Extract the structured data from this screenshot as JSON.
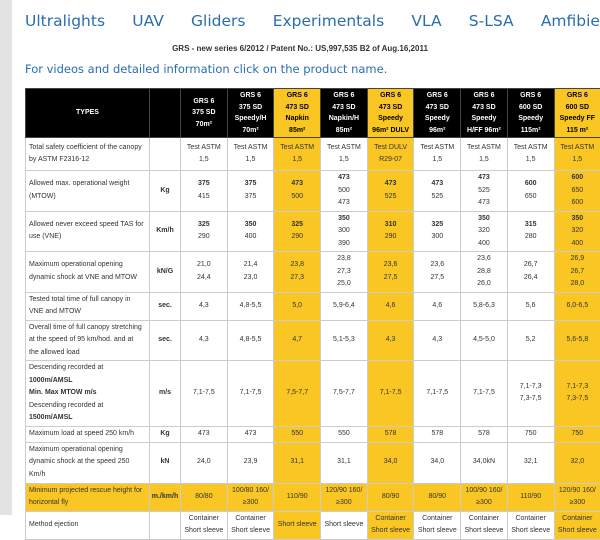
{
  "nav": [
    "Ultralights",
    "UAV",
    "Gliders",
    "Experimentals",
    "VLA",
    "S-LSA",
    "Amfibie"
  ],
  "subtitle": "GRS - new series 6/2012 / Patent No.: US,997,535 B2 of Aug.16,2011",
  "info": "For videos and detailed information click on the product name.",
  "colors": {
    "accent": "#f9c623",
    "header": "#000000",
    "link": "#2a6db0"
  },
  "table": {
    "types_label": "TYPES",
    "highlight_columns": [
      2,
      4,
      8
    ],
    "products": [
      [
        "GRS 6",
        "375 SD",
        "70m²"
      ],
      [
        "GRS 6",
        "375 SD",
        "Speedy/H",
        "70m²"
      ],
      [
        "GRS 6",
        "473 SD",
        "Napkin",
        "85m²"
      ],
      [
        "GRS 6",
        "473 SD",
        "Napkin/H",
        "85m²"
      ],
      [
        "GRS 6",
        "473 SD",
        "Speedy",
        "96m² DULV"
      ],
      [
        "GRS 6",
        "473 SD",
        "Speedy",
        "96m²"
      ],
      [
        "GRS 6",
        "473 SD",
        "Speedy",
        "H/FF 96m²"
      ],
      [
        "GRS 6",
        "600 SD",
        "Speedy",
        "115m²"
      ],
      [
        "GRS 6",
        "600 SD",
        "Speedy FF",
        "115 m²"
      ]
    ],
    "rows": [
      {
        "label": [
          "Total safety coefficient of the canopy",
          "by ASTM F2316-12"
        ],
        "unit": "",
        "bold_first": false,
        "cells": [
          [
            "Test ASTM",
            "1,5"
          ],
          [
            "Test ASTM",
            "1,5"
          ],
          [
            "Test ASTM",
            "1,5"
          ],
          [
            "Test ASTM",
            "1,5"
          ],
          [
            "Test DULV",
            "R29-07"
          ],
          [
            "Test ASTM",
            "1,5"
          ],
          [
            "Test ASTM",
            "1,5"
          ],
          [
            "Test ASTM",
            "1,5"
          ],
          [
            "Test ASTM",
            "1,5"
          ]
        ]
      },
      {
        "label": [
          "Allowed max. operational weight",
          "(MTOW)"
        ],
        "unit": "Kg",
        "bold_first": true,
        "cells": [
          [
            "375",
            "415"
          ],
          [
            "375",
            "375"
          ],
          [
            "473",
            "500"
          ],
          [
            "473",
            "500",
            "473"
          ],
          [
            "473",
            "525"
          ],
          [
            "473",
            "525"
          ],
          [
            "473",
            "525",
            "473"
          ],
          [
            "600",
            "650"
          ],
          [
            "600",
            "650",
            "600"
          ]
        ]
      },
      {
        "label": [
          "Allowed never exceed speed TAS for",
          "use (VNE)"
        ],
        "unit": "Km/h",
        "bold_first": true,
        "cells": [
          [
            "325",
            "290"
          ],
          [
            "350",
            "400"
          ],
          [
            "325",
            "290"
          ],
          [
            "350",
            "300",
            "390"
          ],
          [
            "310",
            "290"
          ],
          [
            "325",
            "300"
          ],
          [
            "350",
            "320",
            "400"
          ],
          [
            "315",
            "280"
          ],
          [
            "350",
            "320",
            "400"
          ]
        ]
      },
      {
        "label": [
          "Maximum operational opening",
          "dynamic shock at VNE and MTOW"
        ],
        "unit": "kN/G",
        "bold_first": false,
        "cells": [
          [
            "21,0",
            "24,4"
          ],
          [
            "21,4",
            "23,0"
          ],
          [
            "23,8",
            "27,3"
          ],
          [
            "23,8",
            "27,3",
            "25,0"
          ],
          [
            "23,6",
            "27,5"
          ],
          [
            "23,6",
            "27,5"
          ],
          [
            "23,6",
            "28,8",
            "26,0"
          ],
          [
            "26,7",
            "26,4"
          ],
          [
            "26,9",
            "26,7",
            "28,0"
          ]
        ]
      },
      {
        "label": [
          "Tested total time of full canopy in",
          "VNE and MTOW"
        ],
        "unit": "sec.",
        "bold_first": false,
        "cells": [
          [
            "4,3"
          ],
          [
            "4,8-5,5"
          ],
          [
            "5,0"
          ],
          [
            "5,9-6,4"
          ],
          [
            "4,6"
          ],
          [
            "4,6"
          ],
          [
            "5,8-6,3"
          ],
          [
            "5,6"
          ],
          [
            "6,0-6,5"
          ]
        ]
      },
      {
        "label": [
          "Overall time of full canopy stretching",
          "at the speed of 95 km/hod. and at",
          "the allowed load"
        ],
        "unit": "sec.",
        "bold_first": false,
        "cells": [
          [
            "4,3"
          ],
          [
            "4,8-5,5"
          ],
          [
            "4,7"
          ],
          [
            "5,1-5,3"
          ],
          [
            "4,3"
          ],
          [
            "4,3"
          ],
          [
            "4,5-5,0"
          ],
          [
            "5,2"
          ],
          [
            "5,6-5,8"
          ]
        ]
      },
      {
        "label": [
          "Descending recorded at",
          "1000m/AMSL",
          "Min. Max MTOW m/s",
          "Descending recorded at",
          "1500m/AMSL"
        ],
        "unit": "m/s",
        "bold_first": false,
        "cells": [
          [
            "7,1-7,5"
          ],
          [
            "7,1-7,5"
          ],
          [
            "7,5-7,7"
          ],
          [
            "7,5-7,7"
          ],
          [
            "7,1-7,5"
          ],
          [
            "7,1-7,5"
          ],
          [
            "7,1-7,5"
          ],
          [
            "7,1-7,3",
            "7,3-7,5"
          ],
          [
            "7,1-7,3",
            "7,3-7,5"
          ]
        ]
      },
      {
        "label": [
          "Maximum load at speed 250 km/h"
        ],
        "unit": "Kg",
        "bold_first": false,
        "cells": [
          [
            "473"
          ],
          [
            "473"
          ],
          [
            "550"
          ],
          [
            "550"
          ],
          [
            "578"
          ],
          [
            "578"
          ],
          [
            "578"
          ],
          [
            "750"
          ],
          [
            "750"
          ]
        ]
      },
      {
        "label": [
          "Maximum operational opening",
          "dynamic shock at the speed 250",
          "Km/h"
        ],
        "unit": "kN",
        "bold_first": false,
        "cells": [
          [
            "24,0"
          ],
          [
            "23,9"
          ],
          [
            "31,1"
          ],
          [
            "31,1"
          ],
          [
            "34,0"
          ],
          [
            "34,0"
          ],
          [
            "34,0kN"
          ],
          [
            "32,1"
          ],
          [
            "32,0"
          ]
        ]
      },
      {
        "label": [
          "Minimum projected rescue height for",
          "horizontal fly"
        ],
        "unit": "m./km/h",
        "bold_first": false,
        "highlight_row": true,
        "cells": [
          [
            "80/80"
          ],
          [
            "100/80 160/",
            "≥300"
          ],
          [
            "110/90"
          ],
          [
            "120/90 160/",
            "≥300"
          ],
          [
            "80/90"
          ],
          [
            "80/90"
          ],
          [
            "100/90 160/",
            "≥300"
          ],
          [
            "110/90"
          ],
          [
            "120/90 160/",
            "≥300"
          ]
        ]
      },
      {
        "label": [
          "Method ejection"
        ],
        "unit": "",
        "bold_first": false,
        "cells": [
          [
            "Container",
            "Short sleeve"
          ],
          [
            "Container",
            "Short sleeve"
          ],
          [
            "Short sleeve"
          ],
          [
            "Short sleeve"
          ],
          [
            "Container",
            "Short sleeve"
          ],
          [
            "Container",
            "Short sleeve"
          ],
          [
            "Container",
            "Short sleeve"
          ],
          [
            "Container",
            "Short sleeve"
          ],
          [
            "Container",
            "Short sleeve"
          ]
        ]
      }
    ]
  }
}
